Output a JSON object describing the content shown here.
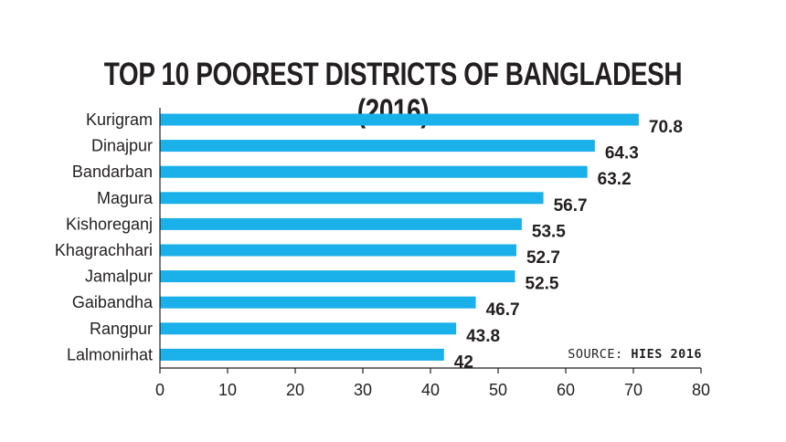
{
  "chart_data": {
    "type": "bar",
    "orientation": "horizontal",
    "title": "TOP 10 POOREST DISTRICTS OF BANGLADESH (2016)",
    "categories": [
      "Kurigram",
      "Dinajpur",
      "Bandarban",
      "Magura",
      "Kishoreganj",
      "Khagrachhari",
      "Jamalpur",
      "Gaibandha",
      "Rangpur",
      "Lalmonirhat"
    ],
    "values": [
      70.8,
      64.3,
      63.2,
      56.7,
      53.5,
      52.7,
      52.5,
      46.7,
      43.8,
      42
    ],
    "value_labels": [
      "70.8",
      "64.3",
      "63.2",
      "56.7",
      "53.5",
      "52.7",
      "52.5",
      "46.7",
      "43.8",
      "42"
    ],
    "xlim": [
      0,
      80
    ],
    "xticks": [
      "0",
      "10",
      "20",
      "30",
      "40",
      "50",
      "60",
      "70",
      "80"
    ],
    "xlabel": "",
    "ylabel": "",
    "grid": false,
    "bar_color": "#1ab0ea",
    "text_color": "#231f20"
  },
  "source": {
    "label": "SOURCE:",
    "name": "HIES 2016"
  }
}
